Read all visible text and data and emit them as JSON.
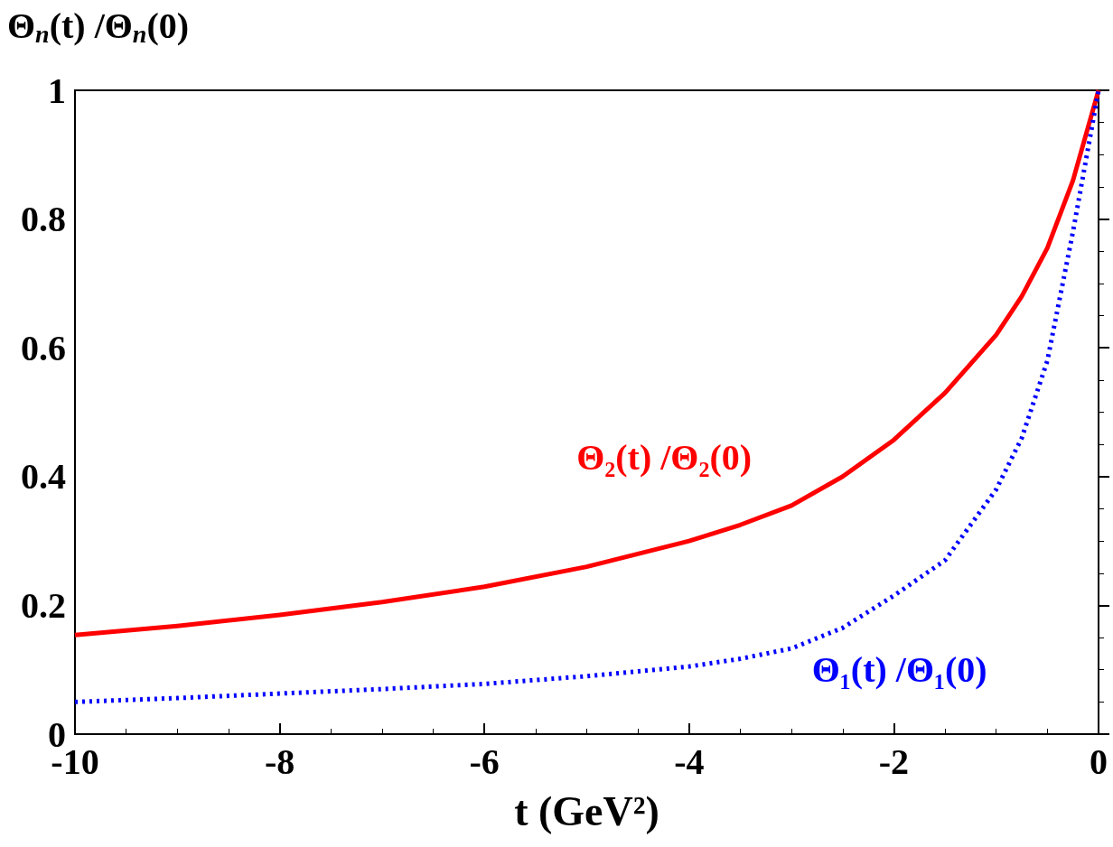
{
  "chart_data": {
    "type": "line",
    "xlabel": "t (GeV²)",
    "ylabel": "Θ$_{n}$(t) /Θ$_{n}$(0)",
    "xlim": [
      -10,
      0
    ],
    "xticks": [
      -10,
      -8,
      -6,
      -4,
      -2,
      0
    ],
    "ylim": [
      0,
      1
    ],
    "yticks": [
      0,
      0.2,
      0.4,
      0.6,
      0.8,
      1
    ],
    "grid": false,
    "legend": false,
    "marker": "none",
    "series": [
      {
        "name": "Θ₂(t) /Θ₂(0)",
        "color": "#ff0000",
        "line_style": "solid",
        "x": [
          -10,
          -9,
          -8,
          -7,
          -6,
          -5,
          -4,
          -3.5,
          -3,
          -2.5,
          -2,
          -1.5,
          -1,
          -0.75,
          -0.5,
          -0.25,
          0
        ],
        "values": [
          0.154,
          0.168,
          0.185,
          0.205,
          0.229,
          0.26,
          0.3,
          0.325,
          0.355,
          0.4,
          0.457,
          0.53,
          0.62,
          0.68,
          0.755,
          0.86,
          1
        ]
      },
      {
        "name": "Θ₁(t) /Θ₁(0)",
        "color": "#0000ff",
        "line_style": "dotted",
        "x": [
          -10,
          -9,
          -8,
          -7,
          -6,
          -5,
          -4,
          -3.5,
          -3,
          -2.5,
          -2,
          -1.5,
          -1,
          -0.75,
          -0.5,
          -0.25,
          0
        ],
        "values": [
          0.05,
          0.056,
          0.063,
          0.07,
          0.078,
          0.09,
          0.105,
          0.117,
          0.133,
          0.165,
          0.215,
          0.27,
          0.38,
          0.46,
          0.58,
          0.78,
          1
        ]
      }
    ]
  }
}
